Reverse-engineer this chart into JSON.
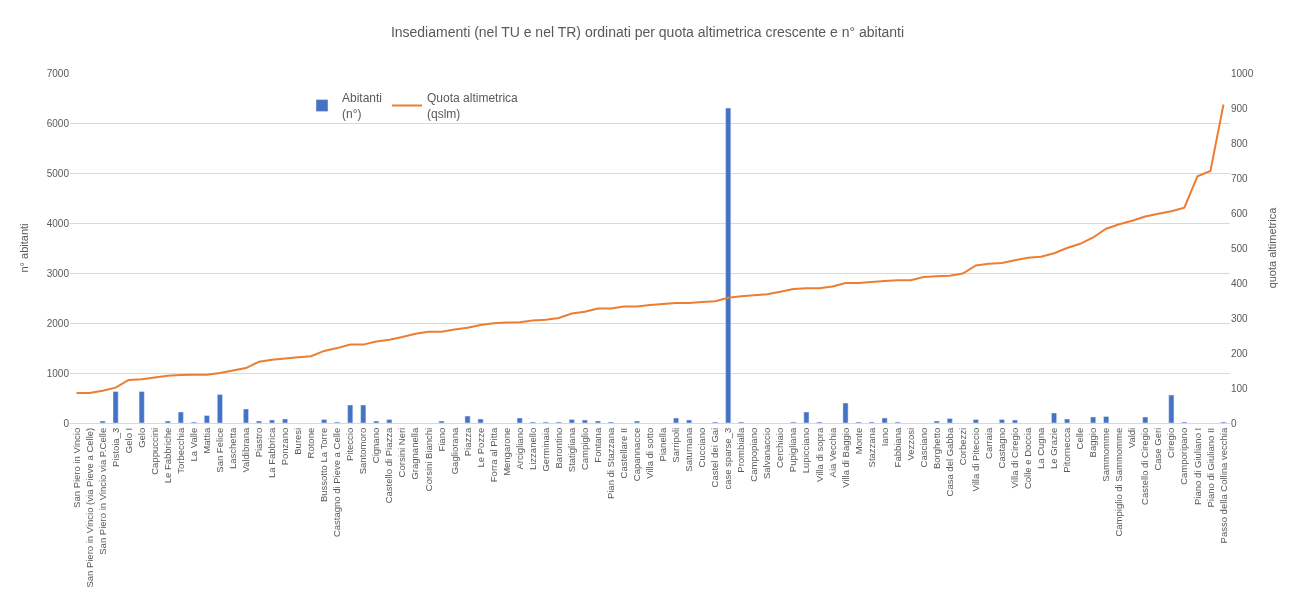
{
  "chart_data": {
    "type": "bar",
    "title": "Insediamenti (nel TU e nel TR) ordinati per quota altimetrica crescente e n° abitanti",
    "ylabel": "n° abitanti",
    "y2label": "quota altimetrica",
    "categories": [
      "San Piero in Vincio",
      "San Piero in Vincio (via Pieve a Celle)",
      "San Piero in Vincio via P.Celle",
      "Pistoia_3",
      "Gelo I",
      "Gelo",
      "Cappuccini",
      "Le Fabbriche",
      "Torbecchia",
      "La Valle",
      "Mattia",
      "San Felice",
      "Laschetta",
      "Valdibrana",
      "Piastro",
      "La Fabbrica",
      "Ponzano",
      "Buresi",
      "Rotone",
      "Bussotto La Torre",
      "Castagno di Pieve a Celle",
      "Piteccio",
      "Santomoro",
      "Cignano",
      "Castello di Piazza",
      "Corsini Neri",
      "Gragnanella",
      "Corsini Bianchi",
      "Fiano",
      "Gagliorana",
      "Piazza",
      "Le Pozze",
      "Forra al Pitta",
      "Mengarone",
      "Arcigliano",
      "Lizzanello",
      "Germinaia",
      "Barontino",
      "Statigliana",
      "Campiglio",
      "Fontana",
      "Pian di Stazzana",
      "Castellare II",
      "Capannacce",
      "Villa di sotto",
      "Pianella",
      "Sarripoli",
      "Saturnana",
      "Cucciano",
      "Castel dei Gai",
      "case sparse_3",
      "Prombialla",
      "Campopiano",
      "Salvanaccio",
      "Cerchiaio",
      "Pupigliana",
      "Lupicciano",
      "Villa di sopra",
      "Aia Vecchia",
      "Villa di Baggio",
      "Monte",
      "Stazzana",
      "Iano",
      "Fabbiana",
      "Vezzosi",
      "Casciano",
      "Borghetto",
      "Casa del Gabba",
      "Corbezzi",
      "Villa di Piteccio",
      "Carraia",
      "Castagno",
      "Villa di Ciregio",
      "Colle e Doccia",
      "La Cugna",
      "Le Grazie",
      "Pitornecca",
      "Celle",
      "Baggio",
      "Sammomme",
      "Campiglio di Sammomme",
      "Valdi",
      "Castello di Ciregio",
      "Case Geri",
      "Ciregio",
      "Camporipano",
      "Piano di Giuliano I",
      "Piano di Giuliano II",
      "Passo della Collina vecchia"
    ],
    "series": [
      {
        "name": "Abitanti (n°)",
        "color": "#4472c4",
        "values": [
          null,
          null,
          40,
          630,
          null,
          630,
          null,
          40,
          220,
          20,
          150,
          570,
          null,
          280,
          40,
          60,
          80,
          null,
          null,
          70,
          20,
          360,
          360,
          40,
          70,
          null,
          null,
          null,
          40,
          null,
          140,
          80,
          null,
          null,
          100,
          20,
          20,
          20,
          70,
          60,
          40,
          20,
          null,
          40,
          null,
          null,
          100,
          60,
          null,
          20,
          6300,
          20,
          null,
          null,
          null,
          20,
          220,
          20,
          null,
          400,
          20,
          20,
          100,
          20,
          null,
          null,
          40,
          90,
          null,
          70,
          null,
          70,
          60,
          null,
          null,
          200,
          80,
          null,
          120,
          130,
          null,
          null,
          120,
          null,
          560,
          20,
          null,
          null,
          20
        ]
      },
      {
        "name": "Quota altimetrica (qslm)",
        "type": "line",
        "axis": "y2",
        "color": "#ed7d31",
        "values": [
          86,
          86,
          92,
          101,
          123,
          125,
          130,
          135,
          137,
          138,
          138,
          143,
          150,
          157,
          175,
          181,
          184,
          188,
          191,
          206,
          214,
          224,
          224,
          233,
          238,
          246,
          255,
          261,
          261,
          267,
          272,
          280,
          285,
          287,
          288,
          293,
          295,
          300,
          313,
          318,
          327,
          327,
          333,
          333,
          337,
          340,
          343,
          343,
          346,
          348,
          358,
          362,
          365,
          368,
          375,
          383,
          385,
          385,
          390,
          400,
          400,
          403,
          406,
          408,
          408,
          417,
          419,
          421,
          427,
          450,
          455,
          457,
          465,
          472,
          475,
          485,
          500,
          512,
          530,
          555,
          568,
          578,
          590,
          598,
          605,
          615,
          705,
          720,
          910
        ]
      }
    ],
    "ylim": [
      0,
      7000
    ],
    "yticks": [
      0,
      1000,
      2000,
      3000,
      4000,
      5000,
      6000,
      7000
    ],
    "y2lim": [
      0,
      1000
    ],
    "y2ticks": [
      0,
      100,
      200,
      300,
      400,
      500,
      600,
      700,
      800,
      900,
      1000
    ],
    "grid": "y",
    "legend": "top"
  }
}
